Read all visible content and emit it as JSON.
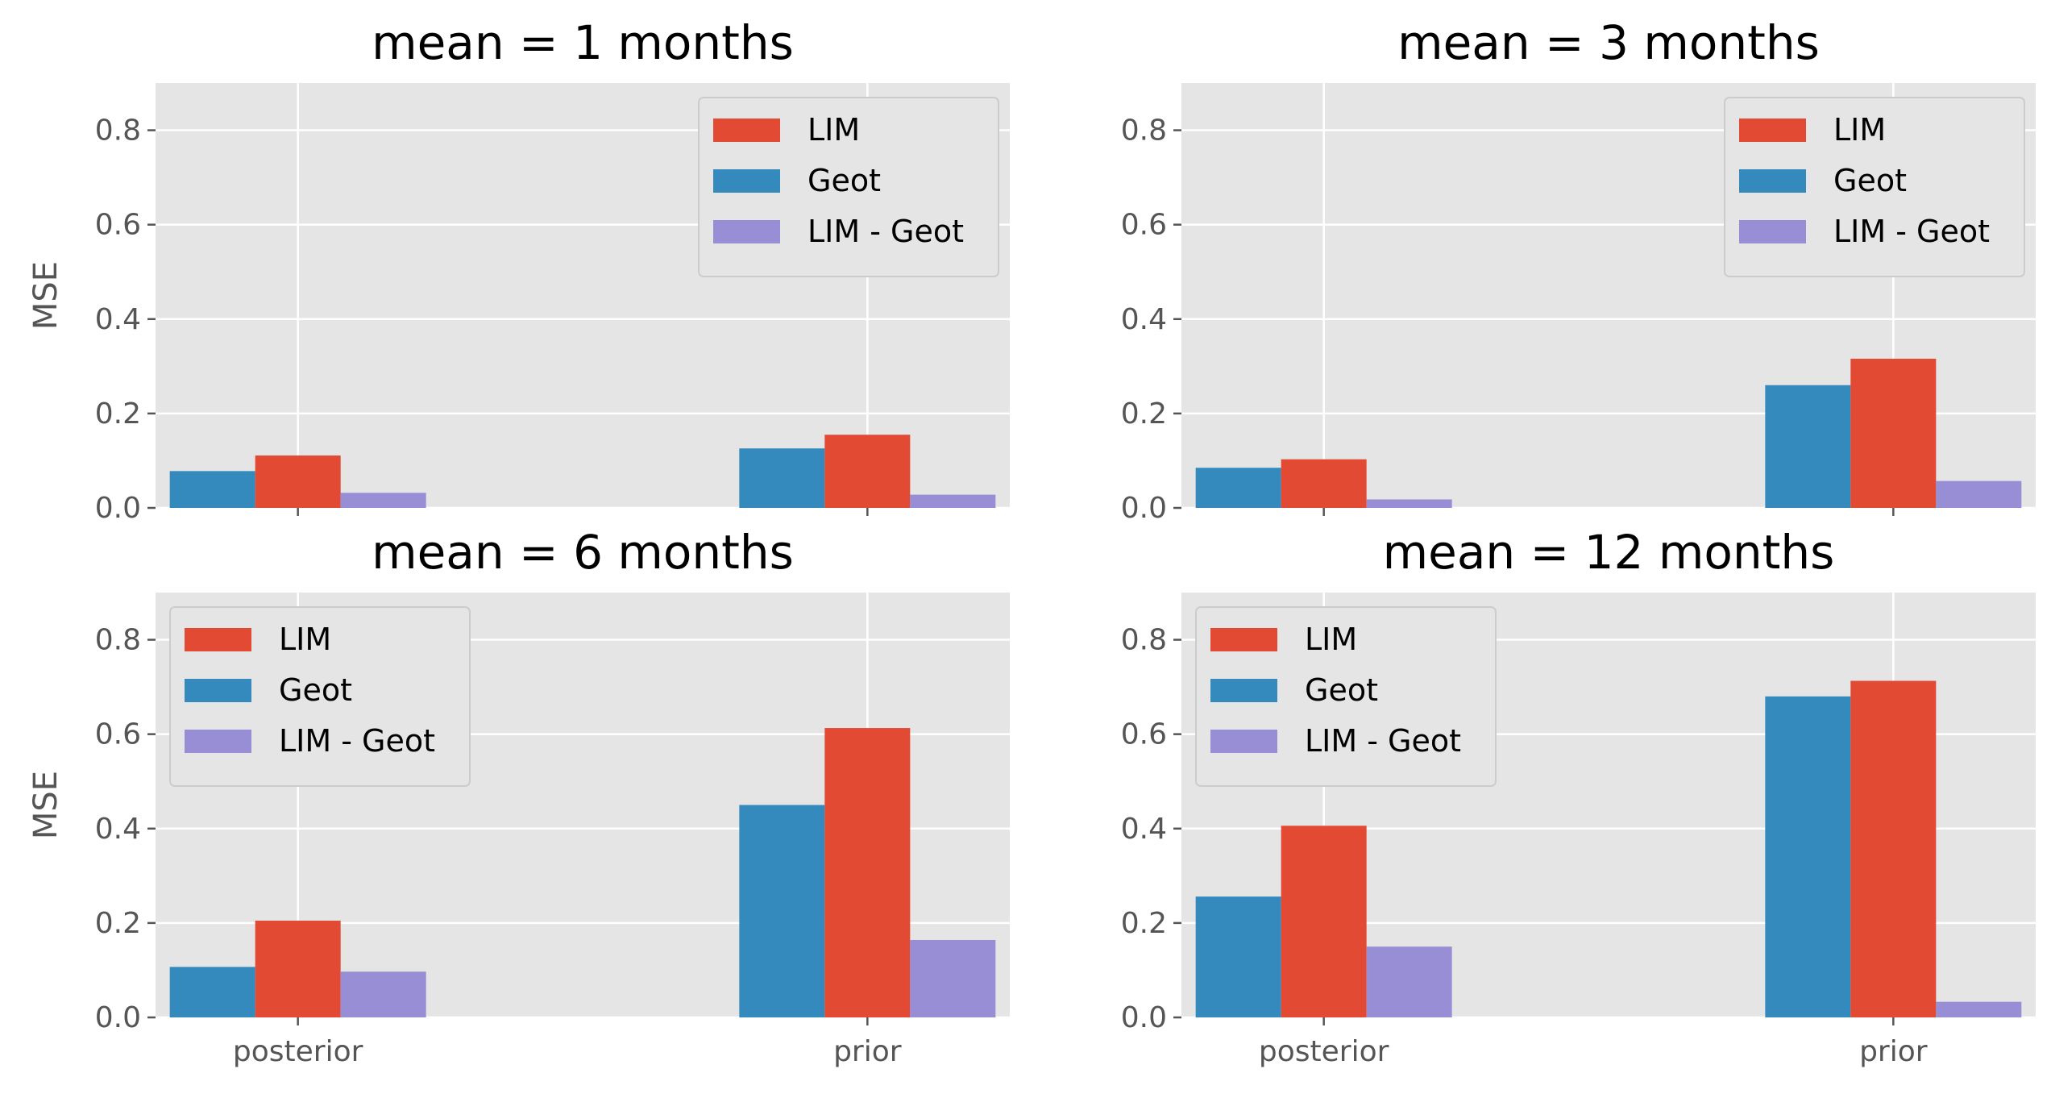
{
  "colors": {
    "LIM": "#E24A33",
    "Geot": "#348ABD",
    "LIM - Geot": "#988ED5",
    "panel_bg": "#E5E5E5",
    "grid": "#FFFFFF"
  },
  "chart_data": [
    {
      "type": "bar",
      "title": "mean = 1 months",
      "ylabel": "MSE",
      "categories": [
        "posterior",
        "prior"
      ],
      "show_xticklabels": false,
      "ylim": [
        0,
        0.9
      ],
      "yticks": [
        "0.0",
        "0.2",
        "0.4",
        "0.6",
        "0.8"
      ],
      "grid": true,
      "legend": "top-right",
      "series": [
        {
          "name": "Geot",
          "values": [
            0.078,
            0.126
          ]
        },
        {
          "name": "LIM",
          "values": [
            0.111,
            0.155
          ]
        },
        {
          "name": "LIM - Geot",
          "values": [
            0.032,
            0.028
          ]
        }
      ]
    },
    {
      "type": "bar",
      "title": "mean = 3 months",
      "ylabel": "",
      "categories": [
        "posterior",
        "prior"
      ],
      "show_xticklabels": false,
      "ylim": [
        0,
        0.9
      ],
      "yticks": [
        "0.0",
        "0.2",
        "0.4",
        "0.6",
        "0.8"
      ],
      "grid": true,
      "legend": "top-right",
      "series": [
        {
          "name": "Geot",
          "values": [
            0.085,
            0.26
          ]
        },
        {
          "name": "LIM",
          "values": [
            0.103,
            0.316
          ]
        },
        {
          "name": "LIM - Geot",
          "values": [
            0.018,
            0.057
          ]
        }
      ]
    },
    {
      "type": "bar",
      "title": "mean = 6 months",
      "ylabel": "MSE",
      "categories": [
        "posterior",
        "prior"
      ],
      "show_xticklabels": true,
      "ylim": [
        0,
        0.9
      ],
      "yticks": [
        "0.0",
        "0.2",
        "0.4",
        "0.6",
        "0.8"
      ],
      "grid": true,
      "legend": "top-left",
      "series": [
        {
          "name": "Geot",
          "values": [
            0.107,
            0.45
          ]
        },
        {
          "name": "LIM",
          "values": [
            0.205,
            0.613
          ]
        },
        {
          "name": "LIM - Geot",
          "values": [
            0.097,
            0.164
          ]
        }
      ]
    },
    {
      "type": "bar",
      "title": "mean = 12 months",
      "ylabel": "",
      "categories": [
        "posterior",
        "prior"
      ],
      "show_xticklabels": true,
      "ylim": [
        0,
        0.9
      ],
      "yticks": [
        "0.0",
        "0.2",
        "0.4",
        "0.6",
        "0.8"
      ],
      "grid": true,
      "legend": "top-left",
      "series": [
        {
          "name": "Geot",
          "values": [
            0.256,
            0.68
          ]
        },
        {
          "name": "LIM",
          "values": [
            0.406,
            0.713
          ]
        },
        {
          "name": "LIM - Geot",
          "values": [
            0.15,
            0.033
          ]
        }
      ]
    }
  ],
  "legend_entries": [
    "LIM",
    "Geot",
    "LIM - Geot"
  ]
}
